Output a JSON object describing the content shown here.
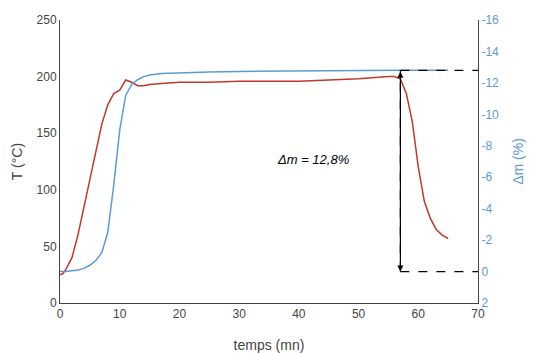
{
  "chart_data": {
    "type": "line",
    "xlabel": "temps (mn)",
    "ylabel": "T (°C)",
    "y2label": "Δm (%)",
    "xlim": [
      0,
      70
    ],
    "xticks": [
      0,
      10,
      20,
      30,
      40,
      50,
      60,
      70
    ],
    "ylim": [
      0,
      250
    ],
    "yticks": [
      0,
      50,
      100,
      150,
      200,
      250
    ],
    "y2lim": [
      2,
      -16
    ],
    "y2ticks": [
      2,
      0,
      -2,
      -4,
      -6,
      -8,
      -10,
      -12,
      -14,
      -16
    ],
    "grid": false,
    "series": [
      {
        "x": [
          0,
          0.5,
          1,
          2,
          3,
          4,
          5,
          6,
          7,
          8,
          9,
          10,
          11,
          12,
          13,
          14,
          15,
          17,
          20,
          25,
          30,
          35,
          40,
          45,
          50,
          55,
          56,
          57,
          58,
          59,
          60,
          61,
          62,
          63,
          64,
          65
        ],
        "values": [
          25,
          26,
          30,
          40,
          60,
          85,
          110,
          135,
          158,
          175,
          185,
          188,
          197,
          195,
          192,
          192,
          193,
          194,
          195,
          195,
          196,
          196,
          196,
          197,
          198,
          200,
          200,
          198,
          185,
          160,
          120,
          90,
          75,
          65,
          60,
          57
        ],
        "color": "#c0392b"
      },
      {
        "x": [
          0,
          1,
          2,
          3,
          4,
          5,
          6,
          7,
          8,
          9,
          10,
          11,
          12,
          13,
          14,
          15,
          17,
          20,
          25,
          30,
          35,
          40,
          45,
          50,
          55,
          57,
          60,
          65
        ],
        "values": [
          0,
          0,
          -0.05,
          -0.1,
          -0.2,
          -0.4,
          -0.7,
          -1.2,
          -2.5,
          -5.5,
          -9.0,
          -11.2,
          -11.9,
          -12.2,
          -12.4,
          -12.5,
          -12.6,
          -12.65,
          -12.7,
          -12.73,
          -12.75,
          -12.78,
          -12.79,
          -12.8,
          -12.8,
          -12.8,
          -12.8,
          -12.8
        ],
        "color": "#5b9bd5",
        "axis": "y2"
      },
      {
        "x": [
          57,
          70
        ],
        "values": [
          0,
          0
        ],
        "color": "black",
        "line_style": "dashed",
        "axis": "y2"
      },
      {
        "x": [
          57,
          70
        ],
        "values": [
          -12.8,
          -12.8
        ],
        "color": "black",
        "line_style": "dashed",
        "axis": "y2"
      },
      {
        "x": [
          57,
          57
        ],
        "values": [
          0,
          -12.8
        ],
        "color": "black",
        "line_style": "dashed",
        "marker": "arrow",
        "axis": "y2"
      }
    ],
    "annotations": [
      {
        "text": "Δm = 12,8%",
        "x": 36,
        "y": -6.5,
        "axis": "y2"
      }
    ]
  }
}
